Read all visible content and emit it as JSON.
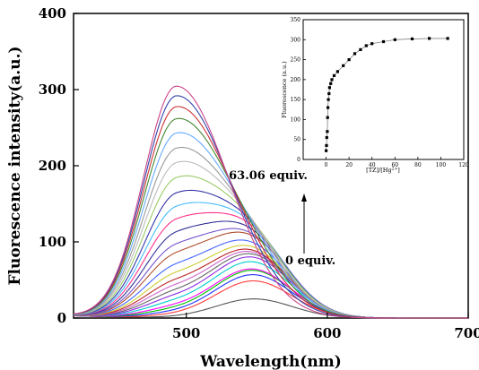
{
  "chart_data": [
    {
      "type": "line",
      "xlabel": "Wavelength(nm)",
      "ylabel": "Fluorescence intensity(a.u.)",
      "xlim": [
        420,
        700
      ],
      "ylim": [
        0,
        400
      ],
      "x_ticks": [
        500,
        600,
        700
      ],
      "y_ticks": [
        0,
        100,
        200,
        300,
        400
      ],
      "x_tick_labels": [
        "500",
        "600",
        "700"
      ],
      "y_tick_labels": [
        "0",
        "100",
        "200",
        "300",
        "400"
      ],
      "grid": false,
      "legend": "none",
      "annotations": {
        "top": "63.06 equiv.",
        "bottom": "0 equiv.",
        "arrow": "up"
      },
      "series_shape": {
        "free_peak_nm": 548,
        "free_peak_width_nm": 38,
        "complex_peak_nm": 493,
        "complex_rise_width_nm": 33,
        "complex_decay_width_nm": 52,
        "baseline": 3
      },
      "series": [
        {
          "peak": 25,
          "color": "#555555"
        },
        {
          "peak": 50,
          "color": "#ff3b3b"
        },
        {
          "peak": 60,
          "color": "#2233ff"
        },
        {
          "peak": 68,
          "color": "#00c000"
        },
        {
          "peak": 72,
          "color": "#ff00ff"
        },
        {
          "peak": 85,
          "color": "#00cccc"
        },
        {
          "peak": 95,
          "color": "#8a2be2"
        },
        {
          "peak": 103,
          "color": "#666666"
        },
        {
          "peak": 110,
          "color": "#cc66cc"
        },
        {
          "peak": 117,
          "color": "#bb2222"
        },
        {
          "peak": 127,
          "color": "#cccc33"
        },
        {
          "peak": 140,
          "color": "#4466ff"
        },
        {
          "peak": 158,
          "color": "#b05030"
        },
        {
          "peak": 168,
          "color": "#7755cc"
        },
        {
          "peak": 184,
          "color": "#333399"
        },
        {
          "peak": 200,
          "color": "#ff3388"
        },
        {
          "peak": 214,
          "color": "#44bbff"
        },
        {
          "peak": 228,
          "color": "#3333aa"
        },
        {
          "peak": 244,
          "color": "#99cc66"
        },
        {
          "peak": 258,
          "color": "#bbbbbb"
        },
        {
          "peak": 270,
          "color": "#999999"
        },
        {
          "peak": 282,
          "color": "#66aaff"
        },
        {
          "peak": 292,
          "color": "#448833"
        },
        {
          "peak": 298,
          "color": "#cc3333"
        },
        {
          "peak": 302,
          "color": "#3344aa"
        },
        {
          "peak": 304,
          "color": "#cc4488"
        }
      ]
    },
    {
      "type": "scatter",
      "xlabel": "[TZ]/[Hg2+]",
      "xlabel_parts": {
        "base": "[TZ]/[Hg",
        "sup": "2+",
        "end": "]"
      },
      "ylabel": "Fluorescence (a.u.)",
      "xlim": [
        -20,
        120
      ],
      "ylim": [
        0,
        350
      ],
      "x_ticks": [
        0,
        20,
        40,
        60,
        80,
        100,
        120
      ],
      "y_ticks": [
        0,
        50,
        100,
        150,
        200,
        250,
        300,
        350
      ],
      "x_tick_labels": [
        "0",
        "20",
        "40",
        "60",
        "80",
        "100",
        "120"
      ],
      "y_tick_labels": [
        "0",
        "50",
        "100",
        "150",
        "200",
        "250",
        "300",
        "350"
      ],
      "grid": false,
      "x": [
        0,
        0.3,
        0.6,
        1,
        1.3,
        1.6,
        2,
        2.5,
        3,
        4,
        5,
        7,
        10,
        15,
        20,
        25,
        30,
        35,
        40,
        50,
        60,
        75,
        90,
        106
      ],
      "y": [
        22,
        35,
        55,
        70,
        105,
        130,
        150,
        165,
        180,
        190,
        200,
        210,
        220,
        235,
        250,
        265,
        275,
        285,
        290,
        295,
        300,
        302,
        303,
        303
      ]
    }
  ]
}
